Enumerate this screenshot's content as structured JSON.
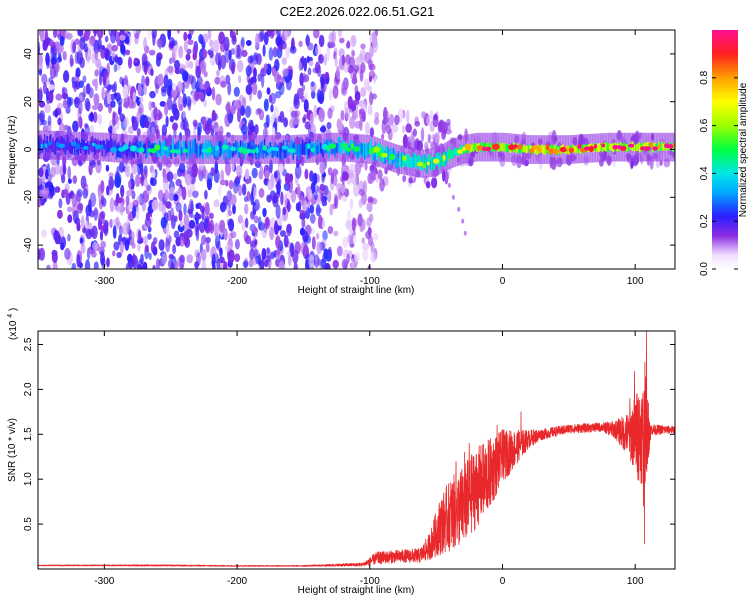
{
  "title": "C2E2.2026.022.06.51.G21",
  "colors": {
    "snr_line": "#e8282a",
    "spectrum_base": "#8a2be2",
    "axis": "#000000"
  },
  "chart_data": [
    {
      "type": "heatmap",
      "xlabel": "Height of straight line (km)",
      "ylabel": "Frequency (Hz)",
      "xlim": [
        -350,
        130
      ],
      "ylim": [
        -50,
        50
      ],
      "x_ticks": [
        -300,
        -200,
        -100,
        0,
        100
      ],
      "y_ticks": [
        -40,
        -20,
        0,
        20,
        40
      ],
      "x_tick_labels": [
        "-300",
        "-200",
        "-100",
        "0",
        "100"
      ],
      "y_tick_labels": [
        "-40",
        "-20",
        "0",
        "20",
        "40"
      ],
      "colorbar": {
        "label": "Normalized spectral amplitude",
        "range": [
          0,
          1
        ],
        "ticks": [
          0.0,
          0.2,
          0.4,
          0.6,
          0.8
        ],
        "tick_labels": [
          "0.0",
          "0.2",
          "0.4",
          "0.6",
          "0.8"
        ]
      },
      "noise_regions": [
        {
          "x_range": [
            -350,
            -130
          ],
          "y_range": [
            -50,
            50
          ],
          "density": "high"
        },
        {
          "x_range": [
            -130,
            -95
          ],
          "y_range": [
            -50,
            50
          ],
          "density": "medium"
        },
        {
          "x_range": [
            -95,
            -40
          ],
          "y_range": [
            -15,
            15
          ],
          "density": "low"
        },
        {
          "x_range": [
            -40,
            130
          ],
          "y_range": [
            -6,
            6
          ],
          "density": "low"
        }
      ],
      "signal_track": [
        {
          "x": -350,
          "freq": 2,
          "amplitude": 0.3
        },
        {
          "x": -300,
          "freq": 1,
          "amplitude": 0.3
        },
        {
          "x": -280,
          "freq": 0,
          "amplitude": 0.35
        },
        {
          "x": -260,
          "freq": 0,
          "amplitude": 0.45
        },
        {
          "x": -240,
          "freq": 0,
          "amplitude": 0.45
        },
        {
          "x": -200,
          "freq": 0,
          "amplitude": 0.4
        },
        {
          "x": -160,
          "freq": 0,
          "amplitude": 0.4
        },
        {
          "x": -130,
          "freq": 1,
          "amplitude": 0.42
        },
        {
          "x": -120,
          "freq": 1,
          "amplitude": 0.5
        },
        {
          "x": -100,
          "freq": 0,
          "amplitude": 0.55
        },
        {
          "x": -90,
          "freq": -2,
          "amplitude": 0.55
        },
        {
          "x": -80,
          "freq": -4,
          "amplitude": 0.55
        },
        {
          "x": -70,
          "freq": -5,
          "amplitude": 0.6
        },
        {
          "x": -60,
          "freq": -6,
          "amplitude": 0.6
        },
        {
          "x": -50,
          "freq": -5,
          "amplitude": 0.6
        },
        {
          "x": -40,
          "freq": -2,
          "amplitude": 0.65
        },
        {
          "x": -30,
          "freq": 0,
          "amplitude": 0.75
        },
        {
          "x": -20,
          "freq": 1,
          "amplitude": 0.85
        },
        {
          "x": 0,
          "freq": 1,
          "amplitude": 0.85
        },
        {
          "x": 20,
          "freq": 0,
          "amplitude": 0.85
        },
        {
          "x": 50,
          "freq": 0,
          "amplitude": 0.85
        },
        {
          "x": 80,
          "freq": 1,
          "amplitude": 0.9
        },
        {
          "x": 100,
          "freq": 1,
          "amplitude": 0.9
        },
        {
          "x": 130,
          "freq": 1,
          "amplitude": 0.85
        }
      ],
      "scattered_spots": [
        {
          "x": -33,
          "freq": -25,
          "amplitude": 0.1
        },
        {
          "x": -30,
          "freq": -30,
          "amplitude": 0.1
        },
        {
          "x": -28,
          "freq": -35,
          "amplitude": 0.1
        },
        {
          "x": -37,
          "freq": -20,
          "amplitude": 0.1
        },
        {
          "x": -40,
          "freq": -15,
          "amplitude": 0.1
        }
      ]
    },
    {
      "type": "line",
      "xlabel": "Height of straight line (km)",
      "ylabel": "SNR (10 * v/v)",
      "y_multiplier": "(x10",
      "y_multiplier_exp": "4",
      "y_multiplier_close": ")",
      "xlim": [
        -350,
        130
      ],
      "ylim": [
        0,
        2.65
      ],
      "x_ticks": [
        -300,
        -200,
        -100,
        0,
        100
      ],
      "y_ticks": [
        0.5,
        1.0,
        1.5,
        2.0,
        2.5
      ],
      "x_tick_labels": [
        "-300",
        "-200",
        "-100",
        "0",
        "100"
      ],
      "y_tick_labels": [
        "0.5",
        "1.0",
        "1.5",
        "2.0",
        "2.5"
      ],
      "series": [
        {
          "name": "SNR",
          "envelope": [
            {
              "x": -350,
              "mean": 0.04,
              "amp": 0.005
            },
            {
              "x": -260,
              "mean": 0.04,
              "amp": 0.008
            },
            {
              "x": -200,
              "mean": 0.035,
              "amp": 0.006
            },
            {
              "x": -150,
              "mean": 0.035,
              "amp": 0.006
            },
            {
              "x": -105,
              "mean": 0.05,
              "amp": 0.02
            },
            {
              "x": -95,
              "mean": 0.12,
              "amp": 0.07
            },
            {
              "x": -80,
              "mean": 0.14,
              "amp": 0.07
            },
            {
              "x": -62,
              "mean": 0.15,
              "amp": 0.08
            },
            {
              "x": -55,
              "mean": 0.25,
              "amp": 0.15
            },
            {
              "x": -48,
              "mean": 0.45,
              "amp": 0.3
            },
            {
              "x": -40,
              "mean": 0.6,
              "amp": 0.4
            },
            {
              "x": -30,
              "mean": 0.7,
              "amp": 0.45
            },
            {
              "x": -20,
              "mean": 0.9,
              "amp": 0.45
            },
            {
              "x": -10,
              "mean": 1.05,
              "amp": 0.4
            },
            {
              "x": 0,
              "mean": 1.25,
              "amp": 0.3
            },
            {
              "x": 10,
              "mean": 1.35,
              "amp": 0.2
            },
            {
              "x": 20,
              "mean": 1.45,
              "amp": 0.1
            },
            {
              "x": 30,
              "mean": 1.5,
              "amp": 0.06
            },
            {
              "x": 50,
              "mean": 1.56,
              "amp": 0.05
            },
            {
              "x": 75,
              "mean": 1.58,
              "amp": 0.05
            },
            {
              "x": 85,
              "mean": 1.55,
              "amp": 0.1
            },
            {
              "x": 95,
              "mean": 1.5,
              "amp": 0.25
            },
            {
              "x": 103,
              "mean": 1.5,
              "amp": 0.55
            },
            {
              "x": 108,
              "mean": 1.55,
              "amp": 0.6
            },
            {
              "x": 112,
              "mean": 1.55,
              "amp": 0.06
            },
            {
              "x": 130,
              "mean": 1.55,
              "amp": 0.04
            }
          ],
          "spikes": [
            {
              "x": 108.5,
              "y": 2.65
            },
            {
              "x": 107.3,
              "y": 2.3
            },
            {
              "x": 107.0,
              "y": 0.28
            },
            {
              "x": 106.2,
              "y": 0.7
            },
            {
              "x": 99.5,
              "y": 2.2
            },
            {
              "x": 101.5,
              "y": 1.95
            },
            {
              "x": 96.0,
              "y": 1.9
            },
            {
              "x": 14.0,
              "y": 1.75
            },
            {
              "x": 0.0,
              "y": 1.55
            },
            {
              "x": -4.0,
              "y": 1.6
            },
            {
              "x": -25.0,
              "y": 1.4
            },
            {
              "x": -28.5,
              "y": 1.3
            },
            {
              "x": -35.0,
              "y": 1.2
            },
            {
              "x": -46.0,
              "y": 0.75
            },
            {
              "x": -40.5,
              "y": 0.95
            }
          ]
        }
      ]
    }
  ]
}
